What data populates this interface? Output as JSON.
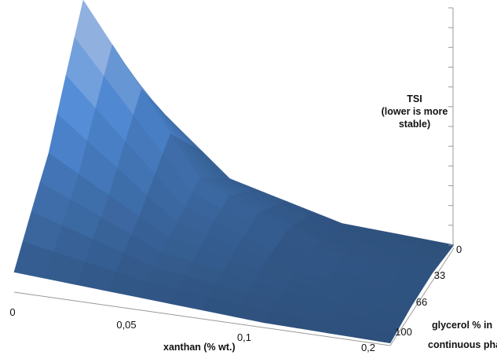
{
  "chart_data": {
    "type": "surface",
    "title": "",
    "z_label": [
      "TSI",
      "(lower is more",
      "stable)"
    ],
    "xlabel": "xanthan (% wt.)",
    "ylabel": [
      "glycerol % in",
      "continuous phase"
    ],
    "x_ticks": [
      "0",
      "0,05",
      "0,1",
      "0,2"
    ],
    "y_ticks": [
      "0",
      "33",
      "66",
      "100"
    ],
    "x": [
      0,
      0.05,
      0.1,
      0.2
    ],
    "y": [
      0,
      33,
      66,
      100
    ],
    "z": [
      [
        6.0,
        1.7,
        0.4,
        0.15
      ],
      [
        10.0,
        3.0,
        0.7,
        0.35
      ],
      [
        4.5,
        1.7,
        0.6,
        0.3
      ],
      [
        0.8,
        0.5,
        0.2,
        0.1
      ]
    ],
    "zlim": [
      0,
      10.5
    ],
    "grid": false,
    "colors": {
      "low": "#2d4f7a",
      "mid": "#4f8ad6",
      "high": "#c6d6f2"
    }
  }
}
